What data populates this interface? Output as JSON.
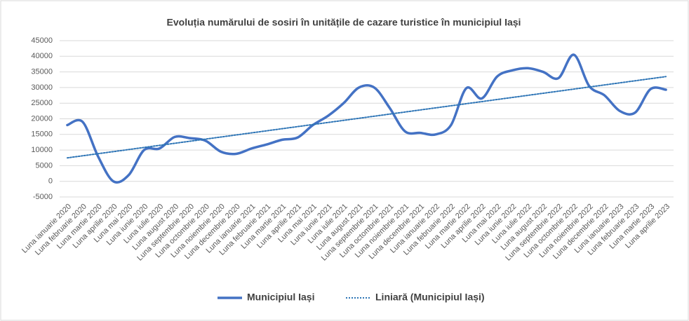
{
  "chart_data": {
    "type": "line",
    "title": "Evoluția numărului de sosiri în unitățile de cazare turistice în municipiul  Iași",
    "categories": [
      "Luna ianuarie 2020",
      "Luna februarie 2020",
      "Luna martie 2020",
      "Luna aprilie 2020",
      "Luna mai 2020",
      "Luna iunie 2020",
      "Luna iulie 2020",
      "Luna august 2020",
      "Luna septembrie 2020",
      "Luna octombrie 2020",
      "Luna noiembrie 2020",
      "Luna decembrie 2020",
      "Luna ianuarie 2021",
      "Luna februarie 2021",
      "Luna martie 2021",
      "Luna aprilie 2021",
      "Luna mai 2021",
      "Luna iunie 2021",
      "Luna iulie 2021",
      "Luna august 2021",
      "Luna septembrie 2021",
      "Luna octombrie 2021",
      "Luna noiembrie 2021",
      "Luna decembrie 2021",
      "Luna ianuarie 2022",
      "Luna februarie 2022",
      "Luna martie 2022",
      "Luna aprilie 2022",
      "Luna mai 2022",
      "Luna iunie 2022",
      "Luna iulie 2022",
      "Luna august 2022",
      "Luna septembrie 2022",
      "Luna octombrie 2022",
      "Luna noiembrie 2022",
      "Luna decembrie 2022",
      "Luna ianuarie 2023",
      "Luna februarie 2023",
      "Luna martie 2023",
      "Luna aprilie 2023"
    ],
    "series": [
      {
        "name": "Municipiul Iași",
        "color": "#4472c4",
        "style": "solid",
        "values": [
          18000,
          19000,
          8000,
          0,
          2000,
          10000,
          10500,
          14200,
          13800,
          13000,
          9500,
          8800,
          10500,
          11800,
          13300,
          14000,
          18000,
          21000,
          25000,
          30000,
          30000,
          23500,
          16000,
          15500,
          15000,
          18000,
          29800,
          26500,
          33500,
          35500,
          36200,
          35000,
          33000,
          40500,
          30500,
          27500,
          22500,
          22000,
          29500,
          29300
        ]
      },
      {
        "name": "Liniară (Municipiul Iași)",
        "color": "#2e75b6",
        "style": "dotted",
        "values": [
          7500,
          8167,
          8833,
          9500,
          10167,
          10833,
          11500,
          12167,
          12833,
          13500,
          14167,
          14833,
          15500,
          16167,
          16833,
          17500,
          18167,
          18833,
          19500,
          20167,
          20833,
          21500,
          22167,
          22833,
          23500,
          24167,
          24833,
          25500,
          26167,
          26833,
          27500,
          28167,
          28833,
          29500,
          30167,
          30833,
          31500,
          32167,
          32833,
          33500
        ]
      }
    ],
    "ylim": [
      -5000,
      45000
    ],
    "yticks": [
      -5000,
      0,
      5000,
      10000,
      15000,
      20000,
      25000,
      30000,
      35000,
      40000,
      45000
    ],
    "grid": true,
    "legend": "bottom"
  }
}
